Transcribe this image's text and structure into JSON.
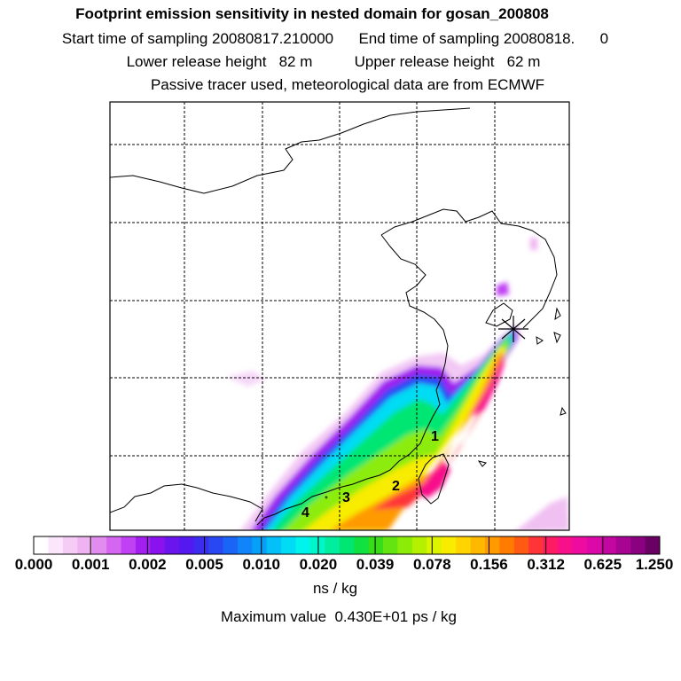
{
  "header": {
    "title": "Footprint emission sensitivity in nested domain for gosan_200808",
    "line2": "Start time of sampling 20080817.210000      End time of sampling 20080818.      0",
    "line3": "Lower release height   82 m          Upper release height   62 m",
    "line4": "Passive tracer used, meteorological data are from ECMWF"
  },
  "map": {
    "point_labels": [
      "1",
      "2",
      "3",
      "4"
    ],
    "station_marker": "star-icon"
  },
  "colorbar": {
    "tick_labels": [
      "0.000",
      "0.001",
      "0.002",
      "0.005",
      "0.010",
      "0.020",
      "0.039",
      "0.078",
      "0.156",
      "0.312",
      "0.625",
      "1.250"
    ],
    "colors": [
      "#ffffff",
      "#fbe6fb",
      "#f5ccf5",
      "#eeb3f0",
      "#e28cf0",
      "#d466f2",
      "#c040f4",
      "#a21ff0",
      "#8a12ee",
      "#6c14ee",
      "#5418f0",
      "#3c2cf0",
      "#2848f4",
      "#1a64f6",
      "#1084f8",
      "#06a0f8",
      "#04c0f8",
      "#00dcf4",
      "#00f4ec",
      "#00f6c8",
      "#00ee9e",
      "#00e672",
      "#10e040",
      "#38dc18",
      "#64e410",
      "#8cec08",
      "#b4f000",
      "#dcf400",
      "#f8ec00",
      "#ffd400",
      "#ffb800",
      "#ff9a00",
      "#ff7c00",
      "#ff5a14",
      "#ff3438",
      "#ff1a64",
      "#f8108a",
      "#ee0ca0",
      "#dc08a8",
      "#c406a0",
      "#a80494",
      "#8a0280",
      "#6a0064"
    ]
  },
  "units": "ns / kg",
  "max_value": "Maximum value  0.430E+01 ps / kg"
}
